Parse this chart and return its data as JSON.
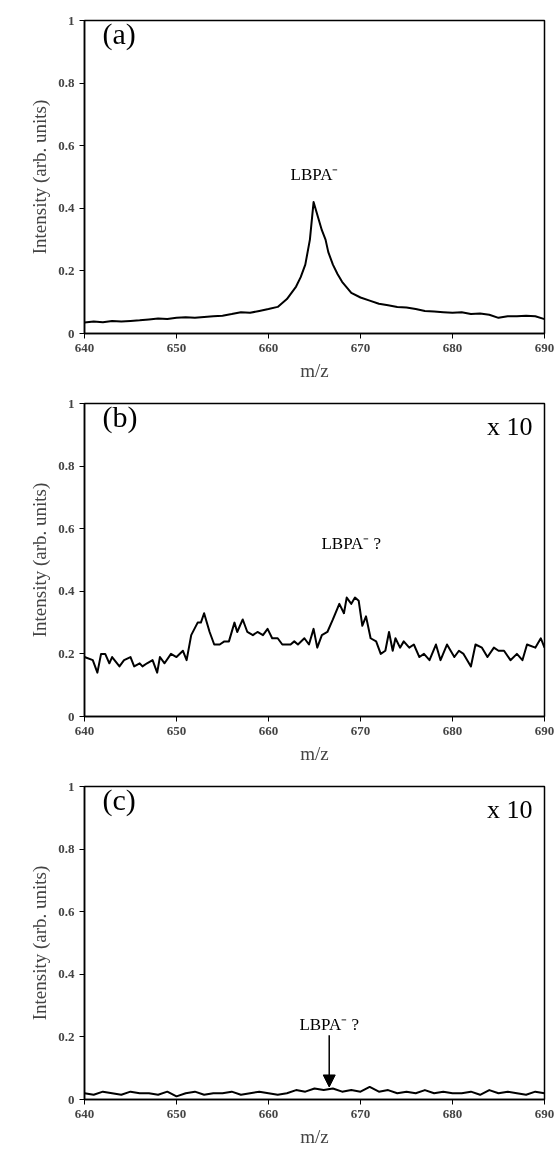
{
  "chart_data": [
    {
      "type": "line",
      "xlabel": "m/z",
      "ylabel": "Intensity (arb. units)",
      "xlim": [
        640,
        690
      ],
      "ylim": [
        0,
        1
      ],
      "xticks": [
        640,
        650,
        660,
        670,
        680,
        690
      ],
      "yticks": [
        0,
        0.2,
        0.4,
        0.6,
        0.8,
        1
      ],
      "grid": false,
      "marker": "none",
      "line_style": "solid",
      "annotations": [
        "(a)",
        {
          "text": "LBPA⁻",
          "x": 665,
          "y": 0.42
        }
      ],
      "series": [
        {
          "color": "#000000",
          "x": [
            640,
            641,
            642,
            643,
            644,
            645,
            646,
            647,
            648,
            649,
            650,
            651,
            652,
            653,
            654,
            655,
            656,
            657,
            658,
            659,
            660,
            661,
            662,
            663,
            663.5,
            664,
            664.5,
            664.9,
            665.4,
            665.8,
            666.2,
            666.5,
            667,
            667.5,
            668,
            669,
            670,
            671,
            672,
            673,
            674,
            675,
            676,
            677,
            678,
            679,
            680,
            681,
            682,
            683,
            684,
            685,
            686,
            687,
            688,
            689,
            690
          ],
          "values": [
            0.035,
            0.038,
            0.036,
            0.04,
            0.038,
            0.04,
            0.042,
            0.045,
            0.048,
            0.046,
            0.05,
            0.052,
            0.05,
            0.053,
            0.055,
            0.057,
            0.062,
            0.068,
            0.066,
            0.072,
            0.078,
            0.085,
            0.11,
            0.15,
            0.18,
            0.22,
            0.3,
            0.42,
            0.37,
            0.33,
            0.3,
            0.26,
            0.22,
            0.19,
            0.165,
            0.13,
            0.115,
            0.105,
            0.095,
            0.09,
            0.085,
            0.083,
            0.078,
            0.072,
            0.07,
            0.068,
            0.066,
            0.068,
            0.062,
            0.064,
            0.06,
            0.05,
            0.055,
            0.055,
            0.057,
            0.055,
            0.046
          ]
        }
      ]
    },
    {
      "type": "line",
      "xlabel": "m/z",
      "ylabel": "Intensity (arb. units)",
      "xlim": [
        640,
        690
      ],
      "ylim": [
        0,
        1
      ],
      "xticks": [
        640,
        650,
        660,
        670,
        680,
        690
      ],
      "yticks": [
        0,
        0.2,
        0.4,
        0.6,
        0.8,
        1
      ],
      "grid": false,
      "marker": "none",
      "line_style": "solid",
      "annotations": [
        "(b)",
        "x 10",
        {
          "text": "LBPA⁻ ?",
          "x": 669,
          "y": 0.38
        }
      ],
      "series": [
        {
          "color": "#000000",
          "x": [
            640,
            640.9,
            641.4,
            641.8,
            642.25,
            642.7,
            643,
            643.8,
            644.3,
            645,
            645.4,
            646,
            646.3,
            646.8,
            647.4,
            647.9,
            648.2,
            648.7,
            649.4,
            650,
            650.7,
            651.1,
            651.6,
            652.3,
            652.65,
            653,
            653.6,
            654.1,
            654.7,
            655.2,
            655.7,
            656.3,
            656.6,
            657.2,
            657.7,
            658.3,
            658.8,
            659.4,
            659.9,
            660.4,
            661,
            661.5,
            662.4,
            662.8,
            663.2,
            663.9,
            664.4,
            664.9,
            665.3,
            665.8,
            666.4,
            667,
            667.7,
            668.2,
            668.5,
            669,
            669.4,
            669.8,
            670.2,
            670.6,
            671.1,
            671.7,
            672.2,
            672.7,
            673.1,
            673.5,
            673.8,
            674.3,
            674.7,
            675.3,
            675.8,
            676.4,
            676.9,
            677.5,
            678.2,
            678.7,
            679.4,
            680.2,
            680.7,
            681.2,
            682,
            682.5,
            683.2,
            683.8,
            684.5,
            685,
            685.6,
            686.3,
            687,
            687.6,
            688.1,
            689,
            689.6,
            690
          ],
          "values": [
            0.19,
            0.18,
            0.14,
            0.2,
            0.2,
            0.17,
            0.19,
            0.16,
            0.18,
            0.19,
            0.16,
            0.17,
            0.16,
            0.17,
            0.18,
            0.14,
            0.19,
            0.17,
            0.2,
            0.19,
            0.21,
            0.18,
            0.26,
            0.3,
            0.3,
            0.33,
            0.27,
            0.23,
            0.23,
            0.24,
            0.24,
            0.3,
            0.27,
            0.31,
            0.27,
            0.26,
            0.27,
            0.26,
            0.28,
            0.25,
            0.25,
            0.23,
            0.23,
            0.24,
            0.23,
            0.25,
            0.23,
            0.28,
            0.22,
            0.26,
            0.27,
            0.31,
            0.36,
            0.33,
            0.38,
            0.36,
            0.38,
            0.37,
            0.29,
            0.32,
            0.25,
            0.24,
            0.2,
            0.21,
            0.27,
            0.21,
            0.25,
            0.22,
            0.24,
            0.22,
            0.23,
            0.19,
            0.2,
            0.18,
            0.23,
            0.18,
            0.23,
            0.19,
            0.21,
            0.2,
            0.16,
            0.23,
            0.22,
            0.19,
            0.22,
            0.21,
            0.21,
            0.18,
            0.2,
            0.18,
            0.23,
            0.22,
            0.25,
            0.22
          ]
        }
      ]
    },
    {
      "type": "line",
      "xlabel": "m/z",
      "ylabel": "Intensity (arb. units)",
      "xlim": [
        640,
        690
      ],
      "ylim": [
        0,
        1
      ],
      "xticks": [
        640,
        650,
        660,
        670,
        680,
        690
      ],
      "yticks": [
        0,
        0.2,
        0.4,
        0.6,
        0.8,
        1
      ],
      "grid": false,
      "marker": "none",
      "line_style": "solid",
      "annotations": [
        "(c)",
        "x 10",
        {
          "text": "LBPA⁻ ?",
          "x": 666.6,
          "y": 0.035
        }
      ],
      "series": [
        {
          "color": "#000000",
          "x": [
            640,
            641,
            642,
            643,
            644,
            645,
            646,
            647,
            648,
            649,
            650,
            651,
            652,
            653,
            654,
            655,
            656,
            657,
            658,
            659,
            660,
            661,
            662,
            663,
            664,
            665,
            666,
            667,
            668,
            669,
            670,
            671,
            672,
            673,
            674,
            675,
            676,
            677,
            678,
            679,
            680,
            681,
            682,
            683,
            684,
            685,
            686,
            687,
            688,
            689,
            690
          ],
          "values": [
            0.02,
            0.015,
            0.025,
            0.02,
            0.015,
            0.025,
            0.02,
            0.02,
            0.015,
            0.025,
            0.01,
            0.02,
            0.025,
            0.015,
            0.02,
            0.02,
            0.025,
            0.015,
            0.02,
            0.025,
            0.02,
            0.015,
            0.02,
            0.03,
            0.025,
            0.035,
            0.03,
            0.035,
            0.025,
            0.03,
            0.025,
            0.04,
            0.025,
            0.03,
            0.02,
            0.025,
            0.02,
            0.03,
            0.02,
            0.025,
            0.02,
            0.02,
            0.025,
            0.015,
            0.03,
            0.02,
            0.025,
            0.02,
            0.015,
            0.025,
            0.02
          ]
        }
      ]
    }
  ]
}
